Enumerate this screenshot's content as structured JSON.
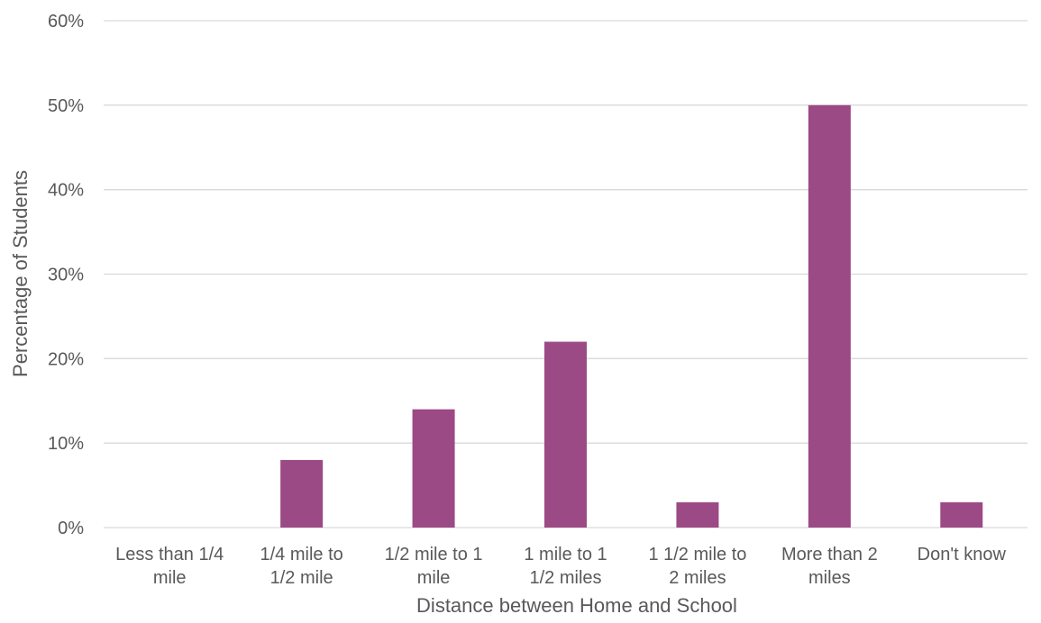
{
  "chart_data": {
    "type": "bar",
    "title": "",
    "xlabel": "Distance between Home and School",
    "ylabel": "Percentage of Students",
    "categories": [
      [
        "Less than 1/4",
        "mile"
      ],
      [
        "1/4 mile to",
        "1/2 mile"
      ],
      [
        "1/2 mile to 1",
        "mile"
      ],
      [
        "1 mile to 1",
        "1/2 miles"
      ],
      [
        "1 1/2 mile to",
        "2 miles"
      ],
      [
        "More than 2",
        "miles"
      ],
      [
        "Don't know"
      ]
    ],
    "values": [
      0,
      8,
      14,
      22,
      3,
      50,
      3
    ],
    "unit": "%",
    "ylim": [
      0,
      60
    ],
    "yticks": [
      0,
      10,
      20,
      30,
      40,
      50,
      60
    ],
    "ytick_labels": [
      "0%",
      "10%",
      "20%",
      "30%",
      "40%",
      "50%",
      "60%"
    ],
    "grid": true,
    "legend": "none",
    "colors": {
      "bar": "#9c4a85",
      "grid": "#d9d9d9",
      "text": "#595959"
    }
  }
}
